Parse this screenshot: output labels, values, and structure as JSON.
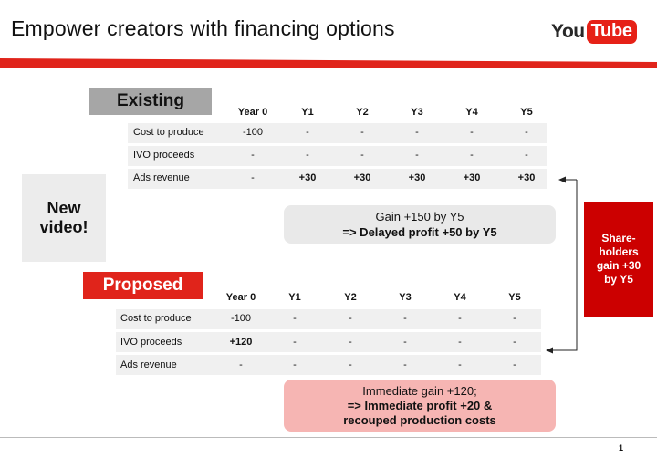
{
  "slide": {
    "title": "Empower creators with financing options",
    "page_number": "1"
  },
  "logo": {
    "you": "You",
    "tube": "Tube"
  },
  "existing": {
    "header": "Existing",
    "columns": [
      "Year 0",
      "Y1",
      "Y2",
      "Y3",
      "Y4",
      "Y5"
    ],
    "rows": [
      {
        "label": "Cost to produce",
        "values": [
          "-100",
          "-",
          "-",
          "-",
          "-",
          "-"
        ]
      },
      {
        "label": "IVO proceeds",
        "values": [
          "-",
          "-",
          "-",
          "-",
          "-",
          "-"
        ]
      },
      {
        "label": "Ads revenue",
        "values": [
          "-",
          "+30",
          "+30",
          "+30",
          "+30",
          "+30"
        ]
      }
    ],
    "summary_line1": "Gain +150 by Y5",
    "summary_line2": "=> Delayed profit +50 by Y5"
  },
  "new_video": {
    "line1": "New",
    "line2": "video!"
  },
  "proposed": {
    "header": "Proposed",
    "columns": [
      "Year 0",
      "Y1",
      "Y2",
      "Y3",
      "Y4",
      "Y5"
    ],
    "rows": [
      {
        "label": "Cost to produce",
        "values": [
          "-100",
          "-",
          "-",
          "-",
          "-",
          "-"
        ]
      },
      {
        "label": "IVO proceeds",
        "values": [
          "+120",
          "-",
          "-",
          "-",
          "-",
          "-"
        ]
      },
      {
        "label": "Ads revenue",
        "values": [
          "-",
          "-",
          "-",
          "-",
          "-",
          "-"
        ]
      }
    ],
    "summary_line1": "Immediate gain +120;",
    "summary_line2_prefix": "=> ",
    "summary_line2_underlined": "Immediate",
    "summary_line2_suffix": " profit +20 &",
    "summary_line3": "recouped production costs"
  },
  "shareholders": {
    "line1": "Share-",
    "line2": "holders",
    "line3": "gain +30",
    "line4": "by Y5"
  },
  "colors": {
    "accent_red": "#e0241b",
    "shareholder_red": "#cc0000",
    "gray_header": "#a6a6a6"
  }
}
